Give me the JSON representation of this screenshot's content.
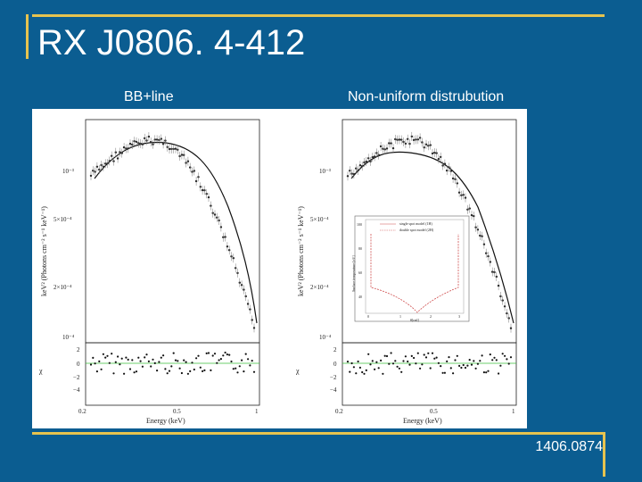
{
  "slide": {
    "title": "RX J0806. 4-412",
    "left_label": "BB+line",
    "right_label": "Non-uniform distrubution",
    "footer": "1406.0874"
  },
  "colors": {
    "background": "#0b5d91",
    "accent_rule": "#e6c34f",
    "text": "#ffffff",
    "residual_zero_line": "#3bbf3b",
    "inset_model_line": "#d05050"
  },
  "figure": {
    "panels": [
      {
        "y_ticks": [
          "10⁻³",
          "5×10⁻⁴",
          "2×10⁻⁴",
          "10⁻⁴"
        ],
        "y_label": "keV² (Photons cm⁻² s⁻¹ keV⁻¹)",
        "res_ticks": [
          "2",
          "0",
          "−2",
          "−4"
        ],
        "res_label": "χ",
        "x_ticks": [
          "0.2",
          "0.5",
          "1"
        ],
        "x_label": "Energy (keV)"
      },
      {
        "y_ticks": [
          "10⁻³",
          "5×10⁻⁴",
          "2×10⁻⁴",
          "10⁻⁴"
        ],
        "y_label": "keV² (Photons cm⁻² s⁻¹ keV⁻¹)",
        "res_ticks": [
          "2",
          "0",
          "−2",
          "−4"
        ],
        "res_label": "χ",
        "x_ticks": [
          "0.2",
          "0.5",
          "1"
        ],
        "x_label": "Energy (keV)",
        "inset": {
          "legend": [
            "single spot model (1H)",
            "double spot model (2H)"
          ],
          "y_label": "Surface temperature [eV]",
          "x_label": "θ[rad]",
          "y_ticks": [
            "100",
            "80",
            "60",
            "40"
          ],
          "x_ticks": [
            "0",
            "1",
            "2",
            "3"
          ]
        }
      }
    ]
  }
}
